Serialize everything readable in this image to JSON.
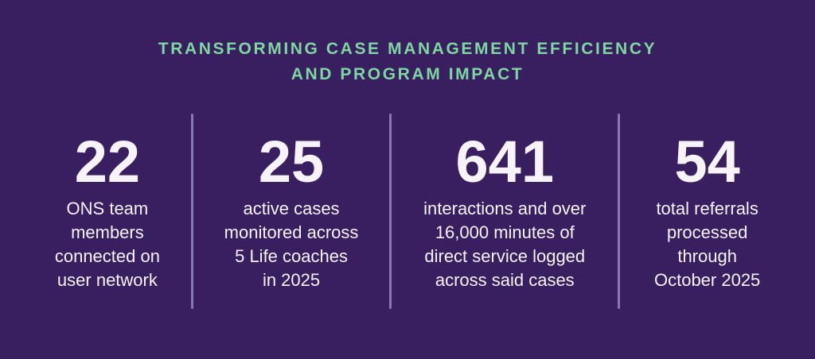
{
  "theme": {
    "background": "#391e60",
    "heading": "#7cd7a0",
    "text": "#f6f3f9",
    "divider": "#8b76b1"
  },
  "header": {
    "line1": "TRANSFORMING CASE MANAGEMENT EFFICIENCY",
    "line2": "AND PROGRAM IMPACT"
  },
  "stats": [
    {
      "value": "22",
      "lines": [
        "ONS team",
        "members",
        "connected on",
        "user network"
      ]
    },
    {
      "value": "25",
      "lines": [
        "active cases",
        "monitored across",
        "5 Life coaches",
        "in 2025"
      ]
    },
    {
      "value": "641",
      "lines": [
        "interactions and over",
        "16,000 minutes of",
        "direct service logged",
        "across said cases"
      ]
    },
    {
      "value": "54",
      "lines": [
        "total referrals",
        "processed",
        "through",
        "October 2025"
      ]
    }
  ],
  "chart_data": {
    "type": "table",
    "title": "Transforming Case Management Efficiency and Program Impact",
    "categories": [
      "ONS team members connected on user network",
      "active cases monitored across 5 Life coaches in 2025",
      "interactions and over 16,000 minutes of direct service logged across said cases",
      "total referrals processed through October 2025"
    ],
    "values": [
      22,
      25,
      641,
      54
    ]
  }
}
